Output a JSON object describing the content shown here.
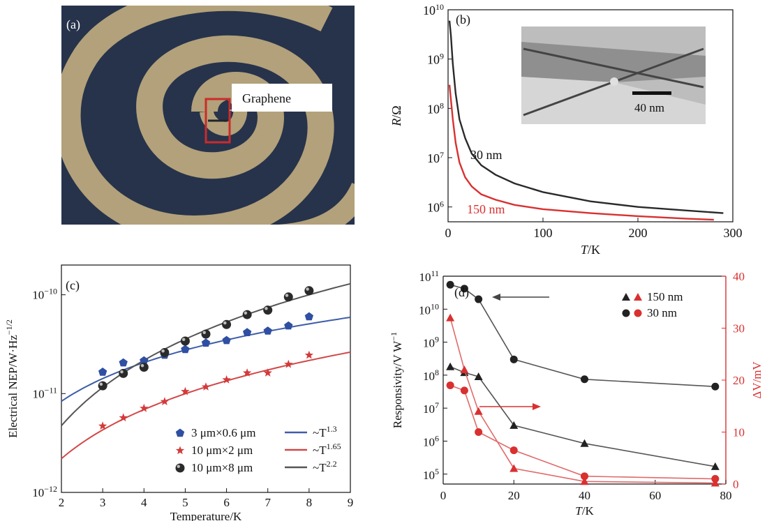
{
  "panels": {
    "a": {
      "label": "(a)",
      "callout": "Graphene",
      "colors": {
        "spiral_gold": "#b2a17a",
        "substrate": "#27334b",
        "box": "#cc2b2b"
      }
    },
    "b": {
      "label": "(b)",
      "inset_scale": "40 nm"
    },
    "c": {
      "label": "(c)"
    },
    "d": {
      "label": "(d)"
    }
  },
  "chart_data": [
    {
      "panel": "b",
      "type": "line",
      "xlabel": "T/K",
      "ylabel": "R/Ω",
      "xlim": [
        0,
        300
      ],
      "ylim": [
        500000,
        10000000000
      ],
      "yscale": "log",
      "xticks": [
        "0",
        "100",
        "200",
        "300"
      ],
      "yticks": [
        "10^6",
        "10^7",
        "10^8",
        "10^9",
        "10^10"
      ],
      "series": [
        {
          "name": "30 nm",
          "color": "#2a2a2a",
          "x": [
            1.5,
            3,
            5,
            8,
            12,
            18,
            25,
            35,
            50,
            70,
            100,
            150,
            200,
            250,
            290
          ],
          "y": [
            6000000000,
            3000000000,
            800000000,
            200000000,
            60000000,
            25000000,
            12000000,
            7000000,
            4500000,
            3000000,
            2000000,
            1300000,
            1000000,
            850000,
            750000
          ]
        },
        {
          "name": "150 nm",
          "color": "#d93030",
          "x": [
            1.5,
            3,
            5,
            8,
            12,
            18,
            25,
            35,
            50,
            70,
            100,
            150,
            200,
            250,
            280
          ],
          "y": [
            300000000,
            150000000,
            60000000,
            20000000,
            8000000,
            4000000,
            2600000,
            1800000,
            1400000,
            1100000,
            900000,
            750000,
            650000,
            580000,
            550000
          ]
        }
      ]
    },
    {
      "panel": "c",
      "type": "scatter",
      "xlabel": "Temperature/K",
      "ylabel": "Electrical NEP/W·Hz^−1/2",
      "xlim": [
        2,
        9
      ],
      "ylim": [
        1e-12,
        2e-10
      ],
      "yscale": "log",
      "xticks": [
        "2",
        "3",
        "4",
        "5",
        "6",
        "7",
        "8",
        "9"
      ],
      "yticks": [
        "10^−12",
        "10^−11",
        "10^−10"
      ],
      "legend": {
        "placement": "bottom",
        "markers": [
          "3 μm×0.6 μm",
          "10 μm×2 μm",
          "10 μm×8 μm"
        ],
        "fits": [
          "~T^1.3",
          "~T^1.65",
          "~T^2.2"
        ]
      },
      "series": [
        {
          "name": "3 μm×0.6 μm",
          "marker": "pentagon",
          "color": "#2f4fa2",
          "x": [
            3,
            3.5,
            4,
            4.5,
            5,
            5.5,
            6,
            6.5,
            7,
            7.5,
            8
          ],
          "y": [
            1.65e-11,
            2.05e-11,
            2.15e-11,
            2.45e-11,
            2.8e-11,
            3.25e-11,
            3.45e-11,
            4.15e-11,
            4.3e-11,
            4.85e-11,
            6e-11
          ],
          "fit": {
            "label": "~T^1.3",
            "exponent": 1.3,
            "prefactor": 3.4e-12,
            "color": "#3e5ca8"
          }
        },
        {
          "name": "10 μm×2 μm",
          "marker": "star",
          "color": "#d33a3a",
          "x": [
            3,
            3.5,
            4,
            4.5,
            5,
            5.5,
            6,
            6.5,
            7,
            7.5,
            8
          ],
          "y": [
            4.7e-12,
            5.7e-12,
            7.1e-12,
            8.3e-12,
            1.05e-11,
            1.17e-11,
            1.38e-11,
            1.62e-11,
            1.62e-11,
            1.98e-11,
            2.45e-11
          ],
          "fit": {
            "label": "~T^1.65",
            "exponent": 1.65,
            "prefactor": 7e-13,
            "color": "#d14848"
          }
        },
        {
          "name": "10 μm×8 μm",
          "marker": "sphere",
          "color": "#2a2a2a",
          "x": [
            3,
            3.5,
            4,
            4.5,
            5,
            5.5,
            6,
            6.5,
            7,
            7.5,
            8
          ],
          "y": [
            1.2e-11,
            1.6e-11,
            1.85e-11,
            2.6e-11,
            3.4e-11,
            4e-11,
            5e-11,
            6.3e-11,
            7e-11,
            9.5e-11,
            1.1e-10
          ],
          "fit": {
            "label": "~T^2.2",
            "exponent": 2.2,
            "prefactor": 1.03e-12,
            "color": "#555555"
          }
        }
      ]
    },
    {
      "panel": "d",
      "type": "line",
      "xlabel": "T/K",
      "ylabel_left": "Responsivity/V W^−1",
      "ylabel_right": "ΔV/mV",
      "xlim": [
        0,
        80
      ],
      "ylim_left": [
        50000,
        100000000000
      ],
      "yscale_left": "log",
      "ylim_right": [
        0,
        40
      ],
      "xticks": [
        "0",
        "20",
        "40",
        "60",
        "80"
      ],
      "yticks_left": [
        "10^5",
        "10^6",
        "10^7",
        "10^8",
        "10^9",
        "10^10",
        "10^11"
      ],
      "yticks_right": [
        "0",
        "10",
        "20",
        "30",
        "40"
      ],
      "legend": {
        "placement": "top-right",
        "entries": [
          "150 nm",
          "30 nm"
        ]
      },
      "series": [
        {
          "name": "150 nm",
          "axis": "left",
          "marker": "triangle",
          "color": "#222222",
          "x": [
            2,
            6,
            10,
            20,
            40,
            77
          ],
          "y": [
            180000000,
            120000000,
            90000000,
            3000000,
            850000,
            170000
          ]
        },
        {
          "name": "30 nm",
          "axis": "left",
          "marker": "circle",
          "color": "#222222",
          "x": [
            2,
            6,
            10,
            20,
            40,
            77
          ],
          "y": [
            55000000000,
            42000000000,
            20000000000,
            300000000,
            75000000,
            45000000
          ]
        },
        {
          "name": "150 nm",
          "axis": "right",
          "marker": "triangle",
          "color": "#d93030",
          "x": [
            2,
            6,
            10,
            20,
            40,
            77
          ],
          "y": [
            32,
            22,
            14,
            3,
            0.5,
            0.2
          ]
        },
        {
          "name": "30 nm",
          "axis": "right",
          "marker": "circle",
          "color": "#d93030",
          "x": [
            2,
            6,
            10,
            20,
            40,
            77
          ],
          "y": [
            19,
            18,
            10,
            6.5,
            1.5,
            1
          ]
        }
      ]
    }
  ]
}
